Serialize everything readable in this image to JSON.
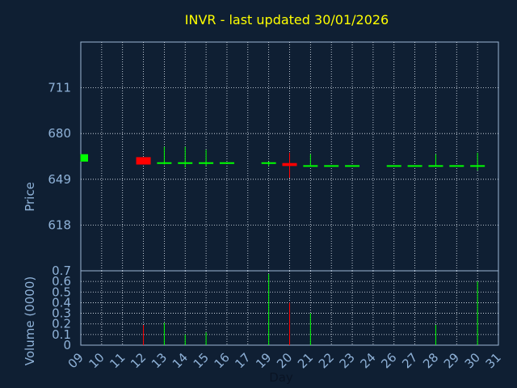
{
  "chart_data": [
    {
      "panel": "price",
      "type": "candlestick",
      "title": "INVR - last updated 30/01/2026",
      "ylabel": "Price",
      "ylim": [
        587,
        742
      ],
      "yticks": [
        618,
        649,
        680,
        711
      ],
      "x_ticks": [
        "09",
        "10",
        "11",
        "12",
        "13",
        "14",
        "15",
        "16",
        "17",
        "19",
        "20",
        "21",
        "22",
        "23",
        "24",
        "26",
        "27",
        "28",
        "29",
        "30",
        "31"
      ],
      "grid": true,
      "up_color": "#00ff00",
      "down_color": "#ff0000",
      "candles": [
        {
          "day": "09",
          "open": 661,
          "close": 666,
          "high": 666,
          "low": 661
        },
        {
          "day": "12",
          "open": 664,
          "close": 659,
          "high": 664,
          "low": 659
        },
        {
          "day": "13",
          "open": 660,
          "close": 660,
          "high": 671,
          "low": 659
        },
        {
          "day": "14",
          "open": 660,
          "close": 660,
          "high": 671,
          "low": 657
        },
        {
          "day": "15",
          "open": 660,
          "close": 660,
          "high": 669,
          "low": 658
        },
        {
          "day": "16",
          "open": 660,
          "close": 660,
          "high": 660,
          "low": 660
        },
        {
          "day": "19",
          "open": 660,
          "close": 660,
          "high": 661,
          "low": 658
        },
        {
          "day": "20",
          "open": 660,
          "close": 658,
          "high": 667,
          "low": 650
        },
        {
          "day": "21",
          "open": 658,
          "close": 658,
          "high": 666,
          "low": 658
        },
        {
          "day": "22",
          "open": 658,
          "close": 658,
          "high": 658,
          "low": 658
        },
        {
          "day": "23",
          "open": 658,
          "close": 658,
          "high": 658,
          "low": 658
        },
        {
          "day": "26",
          "open": 658,
          "close": 658,
          "high": 658,
          "low": 658
        },
        {
          "day": "27",
          "open": 658,
          "close": 658,
          "high": 658,
          "low": 658
        },
        {
          "day": "28",
          "open": 658,
          "close": 658,
          "high": 666,
          "low": 658
        },
        {
          "day": "29",
          "open": 658,
          "close": 658,
          "high": 658,
          "low": 658
        },
        {
          "day": "30",
          "open": 658,
          "close": 658,
          "high": 667,
          "low": 655
        }
      ]
    },
    {
      "panel": "volume",
      "type": "bar",
      "xlabel": "Day",
      "ylabel": "Volume (0000)",
      "ylim": [
        0,
        0.7
      ],
      "yticks": [
        "0",
        "0.1",
        "0.2",
        "0.3",
        "0.4",
        "0.5",
        "0.6",
        "0.7"
      ],
      "grid": true,
      "bars": [
        {
          "day": "12",
          "value": 0.19,
          "color": "#ff0000"
        },
        {
          "day": "13",
          "value": 0.21,
          "color": "#00ff00"
        },
        {
          "day": "14",
          "value": 0.1,
          "color": "#00ff00"
        },
        {
          "day": "15",
          "value": 0.12,
          "color": "#00ff00"
        },
        {
          "day": "19",
          "value": 0.67,
          "color": "#00ff00"
        },
        {
          "day": "20",
          "value": 0.4,
          "color": "#ff0000"
        },
        {
          "day": "21",
          "value": 0.3,
          "color": "#00ff00"
        },
        {
          "day": "28",
          "value": 0.19,
          "color": "#00ff00"
        },
        {
          "day": "30",
          "value": 0.6,
          "color": "#00ff00"
        }
      ]
    }
  ]
}
